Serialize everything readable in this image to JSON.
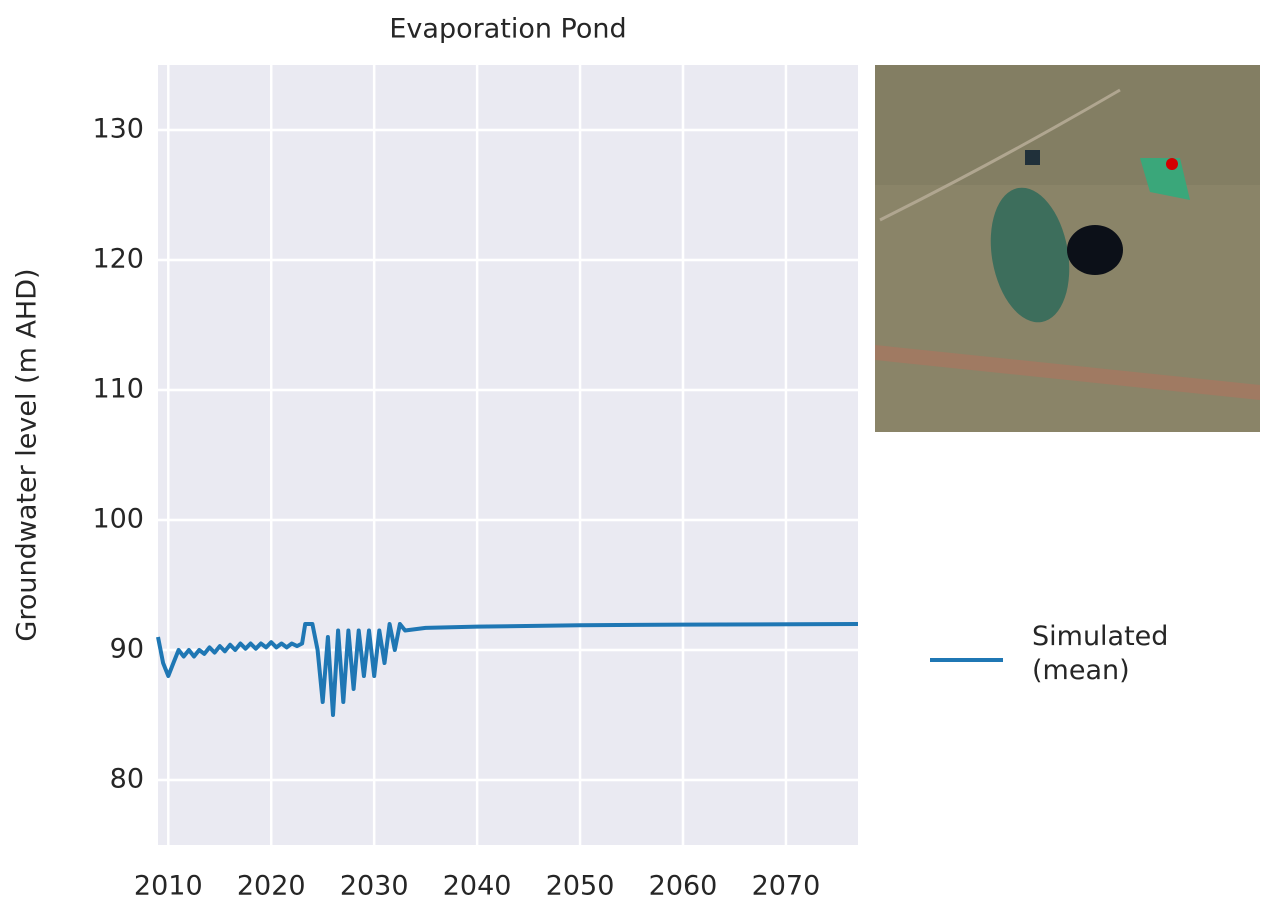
{
  "chart_data": {
    "type": "line",
    "title": "Evaporation Pond",
    "y_label": "Groundwater level (m AHD)",
    "x": [
      2009,
      2009.5,
      2010,
      2010.5,
      2011,
      2011.5,
      2012,
      2012.5,
      2013,
      2013.5,
      2014,
      2014.5,
      2015,
      2015.5,
      2016,
      2016.5,
      2017,
      2017.5,
      2018,
      2018.5,
      2019,
      2019.5,
      2020,
      2020.5,
      2021,
      2021.5,
      2022,
      2022.5,
      2023,
      2023.3,
      2024,
      2024.5,
      2025,
      2025.5,
      2026,
      2026.5,
      2027,
      2027.5,
      2028,
      2028.5,
      2029,
      2029.5,
      2030,
      2030.5,
      2031,
      2031.5,
      2032,
      2032.5,
      2033,
      2035,
      2040,
      2050,
      2060,
      2077
    ],
    "series": [
      {
        "name": "Simulated (mean)",
        "color": "#1f77b4",
        "values": [
          91,
          89,
          88,
          89,
          90,
          89.5,
          90,
          89.5,
          90,
          89.7,
          90.2,
          89.8,
          90.3,
          89.9,
          90.4,
          90,
          90.5,
          90.1,
          90.5,
          90.1,
          90.5,
          90.2,
          90.6,
          90.2,
          90.5,
          90.2,
          90.5,
          90.3,
          90.5,
          92,
          92,
          90,
          86,
          91,
          85,
          91.5,
          86,
          91.5,
          87,
          91.5,
          88,
          91.5,
          88,
          91.5,
          89,
          92,
          90,
          92,
          91.5,
          91.7,
          91.8,
          91.9,
          91.95,
          92
        ]
      }
    ],
    "xlim": [
      2009,
      2077
    ],
    "xticks": [
      2010,
      2020,
      2030,
      2040,
      2050,
      2060,
      2070
    ],
    "ylim": [
      75,
      135
    ],
    "yticks": [
      80,
      90,
      100,
      110,
      120,
      130
    ],
    "grid": true
  }
}
